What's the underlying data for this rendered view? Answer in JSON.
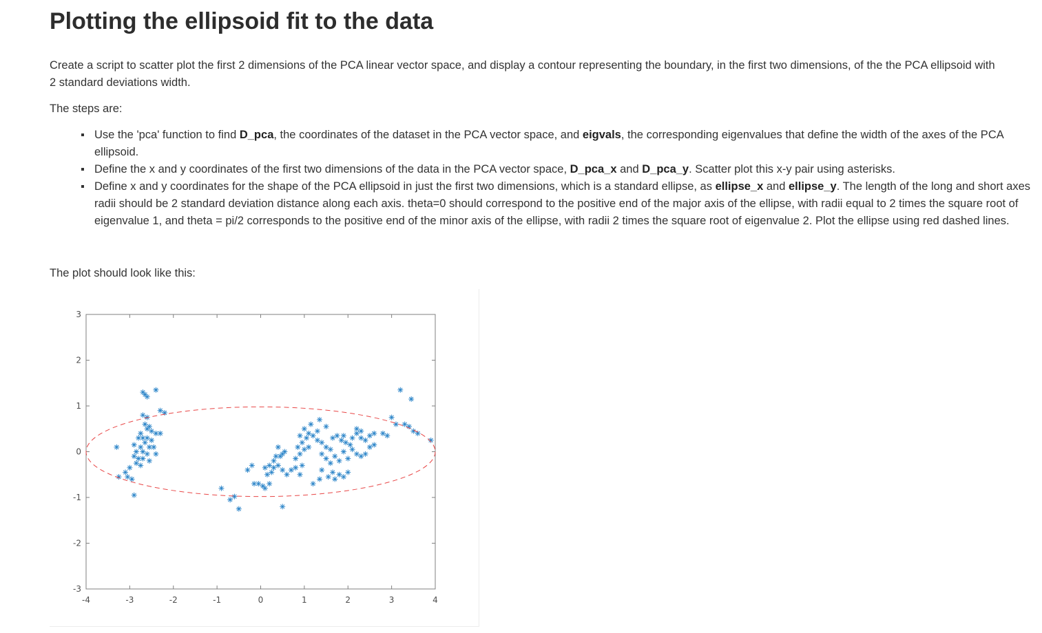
{
  "heading": "Plotting the ellipsoid fit to the data",
  "intro": "Create a script to scatter plot the first 2 dimensions of the PCA linear vector space, and display a contour representing the boundary, in the first two dimensions, of the the PCA ellipsoid with 2 standard deviations width.",
  "steps_label": "The steps are:",
  "steps": [
    {
      "parts": [
        {
          "t": "Use the 'pca' function to find "
        },
        {
          "t": "D_pca",
          "b": true
        },
        {
          "t": ", the coordinates of the dataset in the PCA vector space, and "
        },
        {
          "t": "eigvals",
          "b": true
        },
        {
          "t": ", the corresponding eigenvalues that define the width of the axes of the PCA ellipsoid."
        }
      ]
    },
    {
      "parts": [
        {
          "t": "Define the x and y coordinates of the first two dimensions of the data in the PCA vector space, "
        },
        {
          "t": "D_pca_x",
          "b": true
        },
        {
          "t": " and "
        },
        {
          "t": "D_pca_y",
          "b": true
        },
        {
          "t": ". Scatter plot this x-y pair using asterisks."
        }
      ]
    },
    {
      "parts": [
        {
          "t": "Define x and y coordinates for the shape of the PCA ellipsoid in just the first two dimensions, which is a standard ellipse, as "
        },
        {
          "t": "ellipse_x",
          "b": true
        },
        {
          "t": " and "
        },
        {
          "t": "ellipse_y",
          "b": true
        },
        {
          "t": ". The length of the long and short axes radii should be 2 standard deviation distance along each axis. theta=0 should correspond to the positive end of the major axis of the ellipse, with radii equal to 2 times the square root of eigenvalue 1, and theta = pi/2 corresponds to the positive end of the minor axis of the ellipse, with radii 2 times the square root of eigenvalue 2. Plot the ellipse using red dashed lines."
        }
      ]
    }
  ],
  "plot_label": "The plot should look like this:",
  "chart_data": {
    "type": "scatter",
    "xlim": [
      -4,
      4
    ],
    "ylim": [
      -3,
      3
    ],
    "xticks": [
      "-4",
      "-3",
      "-2",
      "-1",
      "0",
      "1",
      "2",
      "3",
      "4"
    ],
    "yticks": [
      "3",
      "2",
      "1",
      "0",
      "-1",
      "-2",
      "-3"
    ],
    "grid": false,
    "marker": "asterisk",
    "marker_color": "#2e86c9",
    "ellipse": {
      "center": [
        0,
        0
      ],
      "rx": 4.0,
      "ry": 0.98,
      "color": "#e84545",
      "style": "dashed"
    },
    "points": [
      [
        -2.7,
        1.3
      ],
      [
        -2.6,
        1.2
      ],
      [
        -2.4,
        1.35
      ],
      [
        -2.65,
        1.25
      ],
      [
        -2.3,
        0.9
      ],
      [
        -2.2,
        0.85
      ],
      [
        -2.7,
        0.8
      ],
      [
        -2.6,
        0.75
      ],
      [
        -2.65,
        0.6
      ],
      [
        -2.55,
        0.55
      ],
      [
        -2.6,
        0.5
      ],
      [
        -2.5,
        0.45
      ],
      [
        -2.75,
        0.4
      ],
      [
        -2.4,
        0.4
      ],
      [
        -2.3,
        0.4
      ],
      [
        -2.8,
        0.3
      ],
      [
        -2.7,
        0.3
      ],
      [
        -2.6,
        0.3
      ],
      [
        -2.5,
        0.25
      ],
      [
        -2.65,
        0.2
      ],
      [
        -2.9,
        0.15
      ],
      [
        -2.75,
        0.1
      ],
      [
        -2.55,
        0.1
      ],
      [
        -2.45,
        0.1
      ],
      [
        -2.85,
        0.0
      ],
      [
        -2.7,
        0.0
      ],
      [
        -2.6,
        -0.05
      ],
      [
        -2.4,
        -0.05
      ],
      [
        -3.3,
        0.1
      ],
      [
        -2.9,
        -0.1
      ],
      [
        -2.8,
        -0.15
      ],
      [
        -2.7,
        -0.15
      ],
      [
        -2.55,
        -0.2
      ],
      [
        -2.85,
        -0.25
      ],
      [
        -2.75,
        -0.3
      ],
      [
        -3.0,
        -0.35
      ],
      [
        -3.1,
        -0.45
      ],
      [
        -3.05,
        -0.55
      ],
      [
        -2.95,
        -0.6
      ],
      [
        -3.25,
        -0.55
      ],
      [
        -2.9,
        -0.95
      ],
      [
        -0.9,
        -0.8
      ],
      [
        -0.7,
        -1.05
      ],
      [
        -0.6,
        -0.98
      ],
      [
        -0.5,
        -1.25
      ],
      [
        0.5,
        -1.2
      ],
      [
        -0.3,
        -0.4
      ],
      [
        -0.2,
        -0.3
      ],
      [
        -0.15,
        -0.7
      ],
      [
        -0.05,
        -0.7
      ],
      [
        0.05,
        -0.75
      ],
      [
        0.1,
        -0.8
      ],
      [
        0.2,
        -0.7
      ],
      [
        0.15,
        -0.5
      ],
      [
        0.25,
        -0.45
      ],
      [
        0.1,
        -0.35
      ],
      [
        0.2,
        -0.3
      ],
      [
        0.3,
        -0.35
      ],
      [
        0.4,
        -0.3
      ],
      [
        0.3,
        -0.2
      ],
      [
        0.35,
        -0.1
      ],
      [
        0.45,
        -0.1
      ],
      [
        0.5,
        -0.05
      ],
      [
        0.55,
        0.0
      ],
      [
        0.4,
        0.1
      ],
      [
        0.5,
        -0.4
      ],
      [
        0.6,
        -0.5
      ],
      [
        0.7,
        -0.4
      ],
      [
        0.8,
        -0.35
      ],
      [
        0.9,
        -0.5
      ],
      [
        0.95,
        -0.3
      ],
      [
        0.8,
        -0.15
      ],
      [
        0.9,
        -0.05
      ],
      [
        0.85,
        0.1
      ],
      [
        1.0,
        0.05
      ],
      [
        1.1,
        0.1
      ],
      [
        0.95,
        0.2
      ],
      [
        1.05,
        0.3
      ],
      [
        0.9,
        0.35
      ],
      [
        1.1,
        0.4
      ],
      [
        1.2,
        0.35
      ],
      [
        1.3,
        0.45
      ],
      [
        1.0,
        0.5
      ],
      [
        1.15,
        0.6
      ],
      [
        1.35,
        0.7
      ],
      [
        1.5,
        0.55
      ],
      [
        1.3,
        0.25
      ],
      [
        1.4,
        0.2
      ],
      [
        1.5,
        0.1
      ],
      [
        1.6,
        0.05
      ],
      [
        1.4,
        -0.05
      ],
      [
        1.5,
        -0.15
      ],
      [
        1.7,
        -0.1
      ],
      [
        1.6,
        -0.25
      ],
      [
        1.8,
        -0.2
      ],
      [
        1.4,
        -0.4
      ],
      [
        1.55,
        -0.55
      ],
      [
        1.65,
        -0.45
      ],
      [
        1.7,
        -0.6
      ],
      [
        1.35,
        -0.6
      ],
      [
        1.8,
        -0.5
      ],
      [
        1.9,
        -0.55
      ],
      [
        2.0,
        -0.45
      ],
      [
        1.2,
        -0.7
      ],
      [
        1.65,
        0.3
      ],
      [
        1.75,
        0.35
      ],
      [
        1.85,
        0.25
      ],
      [
        1.95,
        0.2
      ],
      [
        2.05,
        0.15
      ],
      [
        1.9,
        0.35
      ],
      [
        2.1,
        0.3
      ],
      [
        2.2,
        0.4
      ],
      [
        2.3,
        0.3
      ],
      [
        2.4,
        0.25
      ],
      [
        2.5,
        0.35
      ],
      [
        2.6,
        0.4
      ],
      [
        2.2,
        0.5
      ],
      [
        2.3,
        0.45
      ],
      [
        2.1,
        0.05
      ],
      [
        2.2,
        -0.05
      ],
      [
        2.3,
        -0.1
      ],
      [
        2.4,
        -0.05
      ],
      [
        2.5,
        0.1
      ],
      [
        2.6,
        0.15
      ],
      [
        2.0,
        -0.15
      ],
      [
        1.9,
        0.0
      ],
      [
        2.8,
        0.4
      ],
      [
        2.9,
        0.35
      ],
      [
        3.0,
        0.75
      ],
      [
        3.1,
        0.6
      ],
      [
        3.3,
        0.6
      ],
      [
        3.4,
        0.55
      ],
      [
        3.5,
        0.45
      ],
      [
        3.6,
        0.4
      ],
      [
        3.9,
        0.25
      ],
      [
        3.2,
        1.35
      ],
      [
        3.45,
        1.15
      ]
    ]
  }
}
